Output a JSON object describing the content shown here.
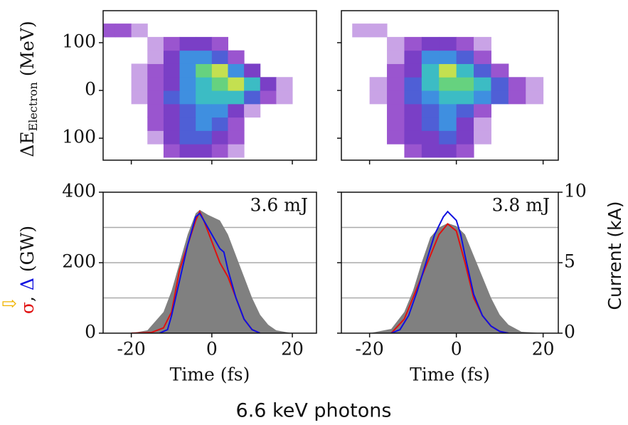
{
  "caption": "6.6 keV photons",
  "chart_data": [
    {
      "type": "heatmap",
      "xlim": [
        -27,
        26
      ],
      "ylim": [
        -146,
        167
      ],
      "xticks": [
        -20,
        0,
        20
      ],
      "yticks": [
        {
          "value": 100,
          "label": "100"
        },
        0,
        {
          "value": -100,
          "label": "100"
        }
      ],
      "ylabel": {
        "main": "ΔE",
        "sub": "Electron",
        "unit": " (MeV)"
      },
      "x_bins": [
        -28,
        -24,
        -20,
        -16,
        -12,
        -8,
        -4,
        0,
        4,
        8,
        12,
        16,
        20,
        24
      ],
      "y_bins": [
        -140,
        -112,
        -84,
        -56,
        -28,
        0,
        28,
        56,
        84,
        112,
        140
      ],
      "colormap": [
        "#c9a3e6",
        "#9a55cf",
        "#7a3fc6",
        "#4f5fd6",
        "#3f8fe0",
        "#3cbcc4",
        "#66d27f",
        "#c4e050",
        "#eeea40"
      ],
      "z": [
        [
          0,
          0,
          0,
          0,
          2,
          3,
          3,
          2,
          1,
          0,
          0,
          0,
          0
        ],
        [
          0,
          0,
          0,
          1,
          3,
          4,
          4,
          3,
          2,
          0,
          0,
          0,
          0
        ],
        [
          0,
          0,
          0,
          2,
          3,
          4,
          5,
          4,
          2,
          0,
          0,
          0,
          0
        ],
        [
          0,
          0,
          0,
          2,
          3,
          4,
          5,
          5,
          3,
          1,
          0,
          0,
          0
        ],
        [
          0,
          0,
          1,
          2,
          4,
          5,
          6,
          6,
          6,
          4,
          2,
          1,
          0
        ],
        [
          0,
          0,
          1,
          2,
          3,
          5,
          6,
          7,
          8,
          6,
          3,
          1,
          0
        ],
        [
          0,
          0,
          1,
          2,
          3,
          5,
          7,
          8,
          5,
          3,
          0,
          0,
          0
        ],
        [
          0,
          0,
          0,
          1,
          3,
          5,
          5,
          4,
          2,
          0,
          0,
          0,
          0
        ],
        [
          0,
          0,
          0,
          1,
          2,
          3,
          3,
          2,
          0,
          0,
          0,
          0,
          0
        ],
        [
          2,
          2,
          1,
          0,
          0,
          0,
          0,
          0,
          0,
          0,
          0,
          0,
          0
        ]
      ]
    },
    {
      "type": "heatmap",
      "xlim": [
        -26.5,
        23.5
      ],
      "ylim": [
        -146,
        167
      ],
      "xticks": [
        -20,
        0,
        20
      ],
      "yticks": [
        100,
        0,
        -100
      ],
      "x_bins": [
        -28,
        -24,
        -20,
        -16,
        -12,
        -8,
        -4,
        0,
        4,
        8,
        12,
        16,
        20,
        24
      ],
      "y_bins": [
        -140,
        -112,
        -84,
        -56,
        -28,
        0,
        28,
        56,
        84,
        112,
        140
      ],
      "colormap": [
        "#c9a3e6",
        "#9a55cf",
        "#7a3fc6",
        "#4f5fd6",
        "#3f8fe0",
        "#3cbcc4",
        "#66d27f",
        "#c4e050",
        "#eeea40"
      ],
      "z": [
        [
          0,
          0,
          0,
          0,
          2,
          3,
          3,
          2,
          0,
          0,
          0,
          0,
          0
        ],
        [
          0,
          0,
          0,
          2,
          3,
          3,
          4,
          3,
          1,
          0,
          0,
          0,
          0
        ],
        [
          0,
          0,
          0,
          2,
          3,
          4,
          5,
          3,
          1,
          0,
          0,
          0,
          0
        ],
        [
          0,
          0,
          0,
          2,
          3,
          4,
          5,
          4,
          2,
          0,
          0,
          0,
          0
        ],
        [
          0,
          0,
          1,
          2,
          4,
          5,
          6,
          6,
          5,
          4,
          2,
          1,
          0
        ],
        [
          0,
          0,
          1,
          2,
          4,
          6,
          7,
          7,
          6,
          4,
          2,
          1,
          0
        ],
        [
          0,
          0,
          0,
          2,
          3,
          6,
          8,
          6,
          4,
          2,
          0,
          0,
          0
        ],
        [
          0,
          0,
          0,
          1,
          3,
          5,
          5,
          4,
          2,
          0,
          0,
          0,
          0
        ],
        [
          0,
          0,
          0,
          1,
          2,
          3,
          3,
          2,
          1,
          0,
          0,
          0,
          0
        ],
        [
          0,
          1,
          1,
          0,
          0,
          0,
          0,
          0,
          0,
          0,
          0,
          0,
          0
        ]
      ]
    },
    {
      "type": "line",
      "xlim": [
        -27,
        26
      ],
      "ylim": [
        0,
        400
      ],
      "y2lim": [
        0,
        10
      ],
      "xticks": [
        -20,
        0,
        20
      ],
      "yticks": [
        0,
        200,
        400
      ],
      "grid_lines": [
        100,
        200,
        300
      ],
      "xlabel": "Time (fs)",
      "annotation": "3.6 mJ",
      "marker": "⇨",
      "marker_color": "#f0b400",
      "ylabel": [
        {
          "text": "σ",
          "color": "#e01010"
        },
        {
          "text": ", ",
          "color": "#111111"
        },
        {
          "text": "Δ",
          "color": "#1010e0"
        },
        {
          "text": " (GW)",
          "color": "#111111"
        }
      ],
      "series": [
        {
          "color": "#808080",
          "fill": true,
          "axis": "y2",
          "x": [
            -20,
            -16,
            -12,
            -10,
            -8,
            -6,
            -4,
            -3,
            -1,
            2,
            4,
            6,
            8,
            10,
            12,
            14,
            16,
            20
          ],
          "values": [
            0,
            0.2,
            1.5,
            3,
            5,
            7,
            8.5,
            8.75,
            8.4,
            8,
            7,
            5.5,
            4,
            2.5,
            1.3,
            0.6,
            0.2,
            0
          ]
        },
        {
          "color": "#e01010",
          "x": [
            -20,
            -15,
            -12,
            -10,
            -8,
            -6,
            -4,
            -3,
            -2,
            0,
            2,
            4,
            6,
            8,
            10,
            12
          ],
          "values": [
            0,
            2,
            15,
            60,
            180,
            250,
            320,
            345,
            320,
            260,
            200,
            160,
            100,
            40,
            10,
            0
          ]
        },
        {
          "color": "#1010e0",
          "x": [
            -13,
            -11,
            -10,
            -8,
            -6,
            -4,
            -3,
            -2,
            0,
            2,
            3,
            4,
            6,
            8,
            10,
            12
          ],
          "values": [
            0,
            10,
            50,
            150,
            250,
            330,
            340,
            320,
            280,
            240,
            230,
            180,
            100,
            40,
            10,
            0
          ]
        }
      ]
    },
    {
      "type": "line",
      "xlim": [
        -26.5,
        23.5
      ],
      "ylim": [
        0,
        400
      ],
      "y2lim": [
        0,
        10
      ],
      "xticks": [
        -20,
        0,
        20
      ],
      "yticks": [
        0,
        200,
        400
      ],
      "y2ticks": [
        0,
        5,
        10
      ],
      "y2label": "Current (kA)",
      "grid_lines": [
        100,
        200,
        300
      ],
      "xlabel": "Time (fs)",
      "annotation": "3.8 mJ",
      "series": [
        {
          "color": "#808080",
          "fill": true,
          "axis": "y2",
          "x": [
            -20,
            -15,
            -12,
            -10,
            -8,
            -6,
            -4,
            -2,
            0,
            2,
            4,
            6,
            8,
            10,
            12,
            15,
            20
          ],
          "values": [
            0,
            0.3,
            1.5,
            3,
            5,
            6.8,
            7.5,
            7.8,
            7.6,
            7,
            5.5,
            4,
            2.5,
            1.3,
            0.6,
            0.1,
            0
          ]
        },
        {
          "color": "#e01010",
          "x": [
            -15,
            -12,
            -10,
            -8,
            -6,
            -4,
            -2,
            0,
            2,
            4,
            6,
            8,
            10,
            12
          ],
          "values": [
            0,
            40,
            100,
            160,
            220,
            280,
            310,
            290,
            200,
            100,
            50,
            20,
            5,
            0
          ]
        },
        {
          "color": "#1010e0",
          "x": [
            -15,
            -13,
            -11,
            -9,
            -7,
            -5,
            -3,
            -2,
            0,
            1,
            2,
            4,
            6,
            8,
            10,
            12
          ],
          "values": [
            0,
            10,
            50,
            120,
            200,
            280,
            330,
            345,
            320,
            280,
            220,
            110,
            50,
            20,
            5,
            0
          ]
        }
      ]
    }
  ]
}
